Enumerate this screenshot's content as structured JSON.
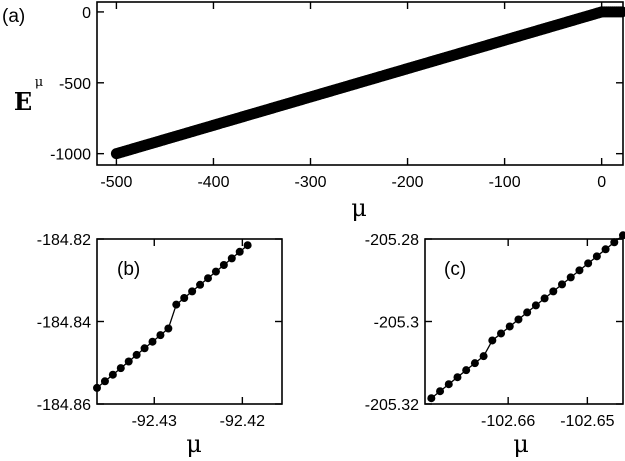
{
  "chart_data": [
    {
      "panel": "(a)",
      "type": "scatter",
      "xlabel": "μ",
      "ylabel": "E",
      "ylabel_superscript": "μ",
      "xlim": [
        -520,
        22
      ],
      "ylim": [
        -1080,
        70
      ],
      "xticks": [
        -500,
        -400,
        -300,
        -200,
        -100,
        0
      ],
      "xtick_labels": [
        "-500",
        "-400",
        "-300",
        "-200",
        "-100",
        "0"
      ],
      "yticks": [
        0,
        -500,
        -1000
      ],
      "ytick_labels": [
        "0",
        "-500",
        "-1000"
      ],
      "series": [
        {
          "x_start": -500,
          "x_end": 0,
          "x_step": 2,
          "y_slope": 2,
          "y_intercept": 0,
          "plateau_x": [
            1,
            3,
            5,
            7,
            9,
            11,
            13,
            15,
            17,
            19,
            21
          ],
          "plateau_y": 0
        }
      ],
      "grid": false
    },
    {
      "panel": "(b)",
      "type": "scatter",
      "xlabel": "μ",
      "xlim": [
        -92.4365,
        -92.4155
      ],
      "ylim": [
        -184.86,
        -184.82
      ],
      "xticks": [
        -92.43,
        -92.42
      ],
      "xtick_labels": [
        "-92.43",
        "-92.42"
      ],
      "yticks": [
        -184.82,
        -184.84,
        -184.86
      ],
      "ytick_labels": [
        "-184.82",
        "-184.84",
        "-184.86"
      ],
      "series": [
        {
          "x": [
            -92.4365,
            -92.4356,
            -92.4347,
            -92.4338,
            -92.4329,
            -92.432,
            -92.4311,
            -92.4302,
            -92.4293,
            -92.4284,
            -92.4275,
            -92.4266,
            -92.4257,
            -92.4248,
            -92.4239,
            -92.423,
            -92.4221,
            -92.4212,
            -92.4203,
            -92.4194
          ],
          "y": [
            -184.8561,
            -184.8545,
            -184.8529,
            -184.8513,
            -184.8497,
            -184.8481,
            -184.8465,
            -184.8449,
            -184.8433,
            -184.8417,
            -184.8359,
            -184.8343,
            -184.8327,
            -184.8311,
            -184.8295,
            -184.8279,
            -184.8263,
            -184.8247,
            -184.8231,
            -184.8215
          ]
        }
      ],
      "grid": false
    },
    {
      "panel": "(c)",
      "type": "scatter",
      "xlabel": "μ",
      "xlim": [
        -102.6705,
        -102.6455
      ],
      "ylim": [
        -205.32,
        -205.28
      ],
      "xticks": [
        -102.66,
        -102.65
      ],
      "xtick_labels": [
        "-102.66",
        "-102.65"
      ],
      "yticks": [
        -205.28,
        -205.3,
        -205.32
      ],
      "ytick_labels": [
        "-205.28",
        "-205.3",
        "-205.32"
      ],
      "series": [
        {
          "x": [
            -102.6697,
            -102.6686,
            -102.6675,
            -102.6664,
            -102.6653,
            -102.6642,
            -102.6631,
            -102.662,
            -102.6609,
            -102.6598,
            -102.6587,
            -102.6576,
            -102.6565,
            -102.6554,
            -102.6543,
            -102.6532,
            -102.6521,
            -102.651,
            -102.6499,
            -102.6488,
            -102.6477,
            -102.6466,
            -102.6455
          ],
          "y": [
            -205.3186,
            -205.3169,
            -205.3152,
            -205.3135,
            -205.3118,
            -205.3101,
            -205.3084,
            -205.3046,
            -205.3029,
            -205.3012,
            -205.2995,
            -205.2978,
            -205.2961,
            -205.2944,
            -205.2927,
            -205.291,
            -205.2893,
            -205.2876,
            -205.2859,
            -205.2842,
            -205.2825,
            -205.2808,
            -205.2791
          ]
        }
      ],
      "grid": false
    }
  ]
}
